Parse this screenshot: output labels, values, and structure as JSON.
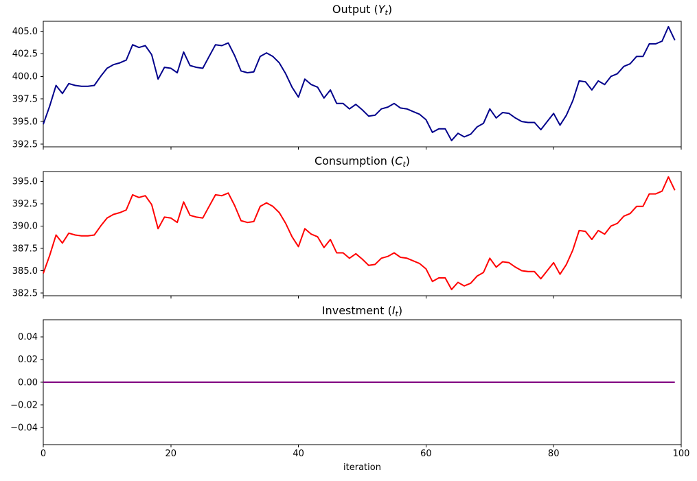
{
  "figure": {
    "background": "#ffffff",
    "xlabel": "iteration",
    "xlim": [
      0,
      100
    ],
    "x_ticks": [
      0,
      20,
      40,
      60,
      80,
      100
    ],
    "x_tick_labels": [
      "0",
      "20",
      "40",
      "60",
      "80",
      "100"
    ],
    "spine_color": "#000000",
    "n_subplots": 3
  },
  "chart_data": [
    {
      "id": "output",
      "type": "line",
      "title_text": "Output (Yt)",
      "title": {
        "prefix": "Output (",
        "variable": "Y",
        "subscript": "t",
        "suffix": ")"
      },
      "color": "#00008B",
      "color_name": "darkblue",
      "line_width": 2,
      "grid": false,
      "legend": "none",
      "ylim": [
        392.2,
        406.1
      ],
      "y_ticks": [
        405.0,
        402.5,
        400.0,
        397.5,
        395.0,
        392.5
      ],
      "y_tick_labels": [
        "405.0",
        "402.5",
        "400.0",
        "397.5",
        "395.0",
        "392.5"
      ],
      "show_x_tick_labels": false,
      "n_points": 100,
      "values": [
        394.7,
        396.7,
        399.0,
        398.1,
        399.2,
        399.0,
        398.9,
        398.9,
        399.0,
        400.0,
        400.9,
        401.3,
        401.5,
        401.8,
        403.5,
        403.2,
        403.4,
        402.4,
        399.7,
        401.0,
        400.9,
        400.4,
        402.7,
        401.2,
        401.0,
        400.9,
        402.2,
        403.5,
        403.4,
        403.7,
        402.3,
        400.6,
        400.4,
        400.5,
        402.2,
        402.6,
        402.2,
        401.5,
        400.3,
        398.8,
        397.7,
        399.7,
        399.1,
        398.8,
        397.6,
        398.5,
        397.0,
        397.0,
        396.4,
        396.9,
        396.3,
        395.6,
        395.7,
        396.4,
        396.6,
        397.0,
        396.5,
        396.4,
        396.1,
        395.8,
        395.2,
        393.8,
        394.2,
        394.2,
        392.9,
        393.7,
        393.3,
        393.6,
        394.4,
        394.8,
        396.4,
        395.4,
        396.0,
        395.9,
        395.4,
        395.0,
        394.9,
        394.9,
        394.1,
        395.0,
        395.9,
        394.6,
        395.7,
        397.3,
        399.5,
        399.4,
        398.5,
        399.5,
        399.1,
        400.0,
        400.3,
        401.1,
        401.4,
        402.2,
        402.2,
        403.6,
        403.6,
        403.9,
        405.5,
        404.0
      ]
    },
    {
      "id": "consumption",
      "type": "line",
      "title_text": "Consumption (Ct)",
      "title": {
        "prefix": "Consumption (",
        "variable": "C",
        "subscript": "t",
        "suffix": ")"
      },
      "color": "#FF0000",
      "color_name": "red",
      "line_width": 2,
      "grid": false,
      "legend": "none",
      "ylim": [
        382.2,
        396.1
      ],
      "y_ticks": [
        395.0,
        392.5,
        390.0,
        387.5,
        385.0,
        382.5
      ],
      "y_tick_labels": [
        "395.0",
        "392.5",
        "390.0",
        "387.5",
        "385.0",
        "382.5"
      ],
      "show_x_tick_labels": false,
      "n_points": 100,
      "values": [
        384.7,
        386.7,
        389.0,
        388.1,
        389.2,
        389.0,
        388.9,
        388.9,
        389.0,
        390.0,
        390.9,
        391.3,
        391.5,
        391.8,
        393.5,
        393.2,
        393.4,
        392.4,
        389.7,
        391.0,
        390.9,
        390.4,
        392.7,
        391.2,
        391.0,
        390.9,
        392.2,
        393.5,
        393.4,
        393.7,
        392.3,
        390.6,
        390.4,
        390.5,
        392.2,
        392.6,
        392.2,
        391.5,
        390.3,
        388.8,
        387.7,
        389.7,
        389.1,
        388.8,
        387.6,
        388.5,
        387.0,
        387.0,
        386.4,
        386.9,
        386.3,
        385.6,
        385.7,
        386.4,
        386.6,
        387.0,
        386.5,
        386.4,
        386.1,
        385.8,
        385.2,
        383.8,
        384.2,
        384.2,
        382.9,
        383.7,
        383.3,
        383.6,
        384.4,
        384.8,
        386.4,
        385.4,
        386.0,
        385.9,
        385.4,
        385.0,
        384.9,
        384.9,
        384.1,
        385.0,
        385.9,
        384.6,
        385.7,
        387.3,
        389.5,
        389.4,
        388.5,
        389.5,
        389.1,
        390.0,
        390.3,
        391.1,
        391.4,
        392.2,
        392.2,
        393.6,
        393.6,
        393.9,
        395.5,
        394.0
      ]
    },
    {
      "id": "investment",
      "type": "line",
      "title_text": "Investment (It)",
      "title": {
        "prefix": "Investment (",
        "variable": "I",
        "subscript": "t",
        "suffix": ")"
      },
      "color": "#800080",
      "color_name": "purple",
      "line_width": 2,
      "grid": false,
      "legend": "none",
      "ylim": [
        -0.055,
        0.055
      ],
      "y_ticks": [
        0.04,
        0.02,
        0.0,
        -0.02,
        -0.04
      ],
      "y_tick_labels": [
        "0.04",
        "0.02",
        "0.00",
        "−0.02",
        "−0.04"
      ],
      "show_x_tick_labels": true,
      "n_points": 100,
      "values_constant": 0.0
    }
  ]
}
